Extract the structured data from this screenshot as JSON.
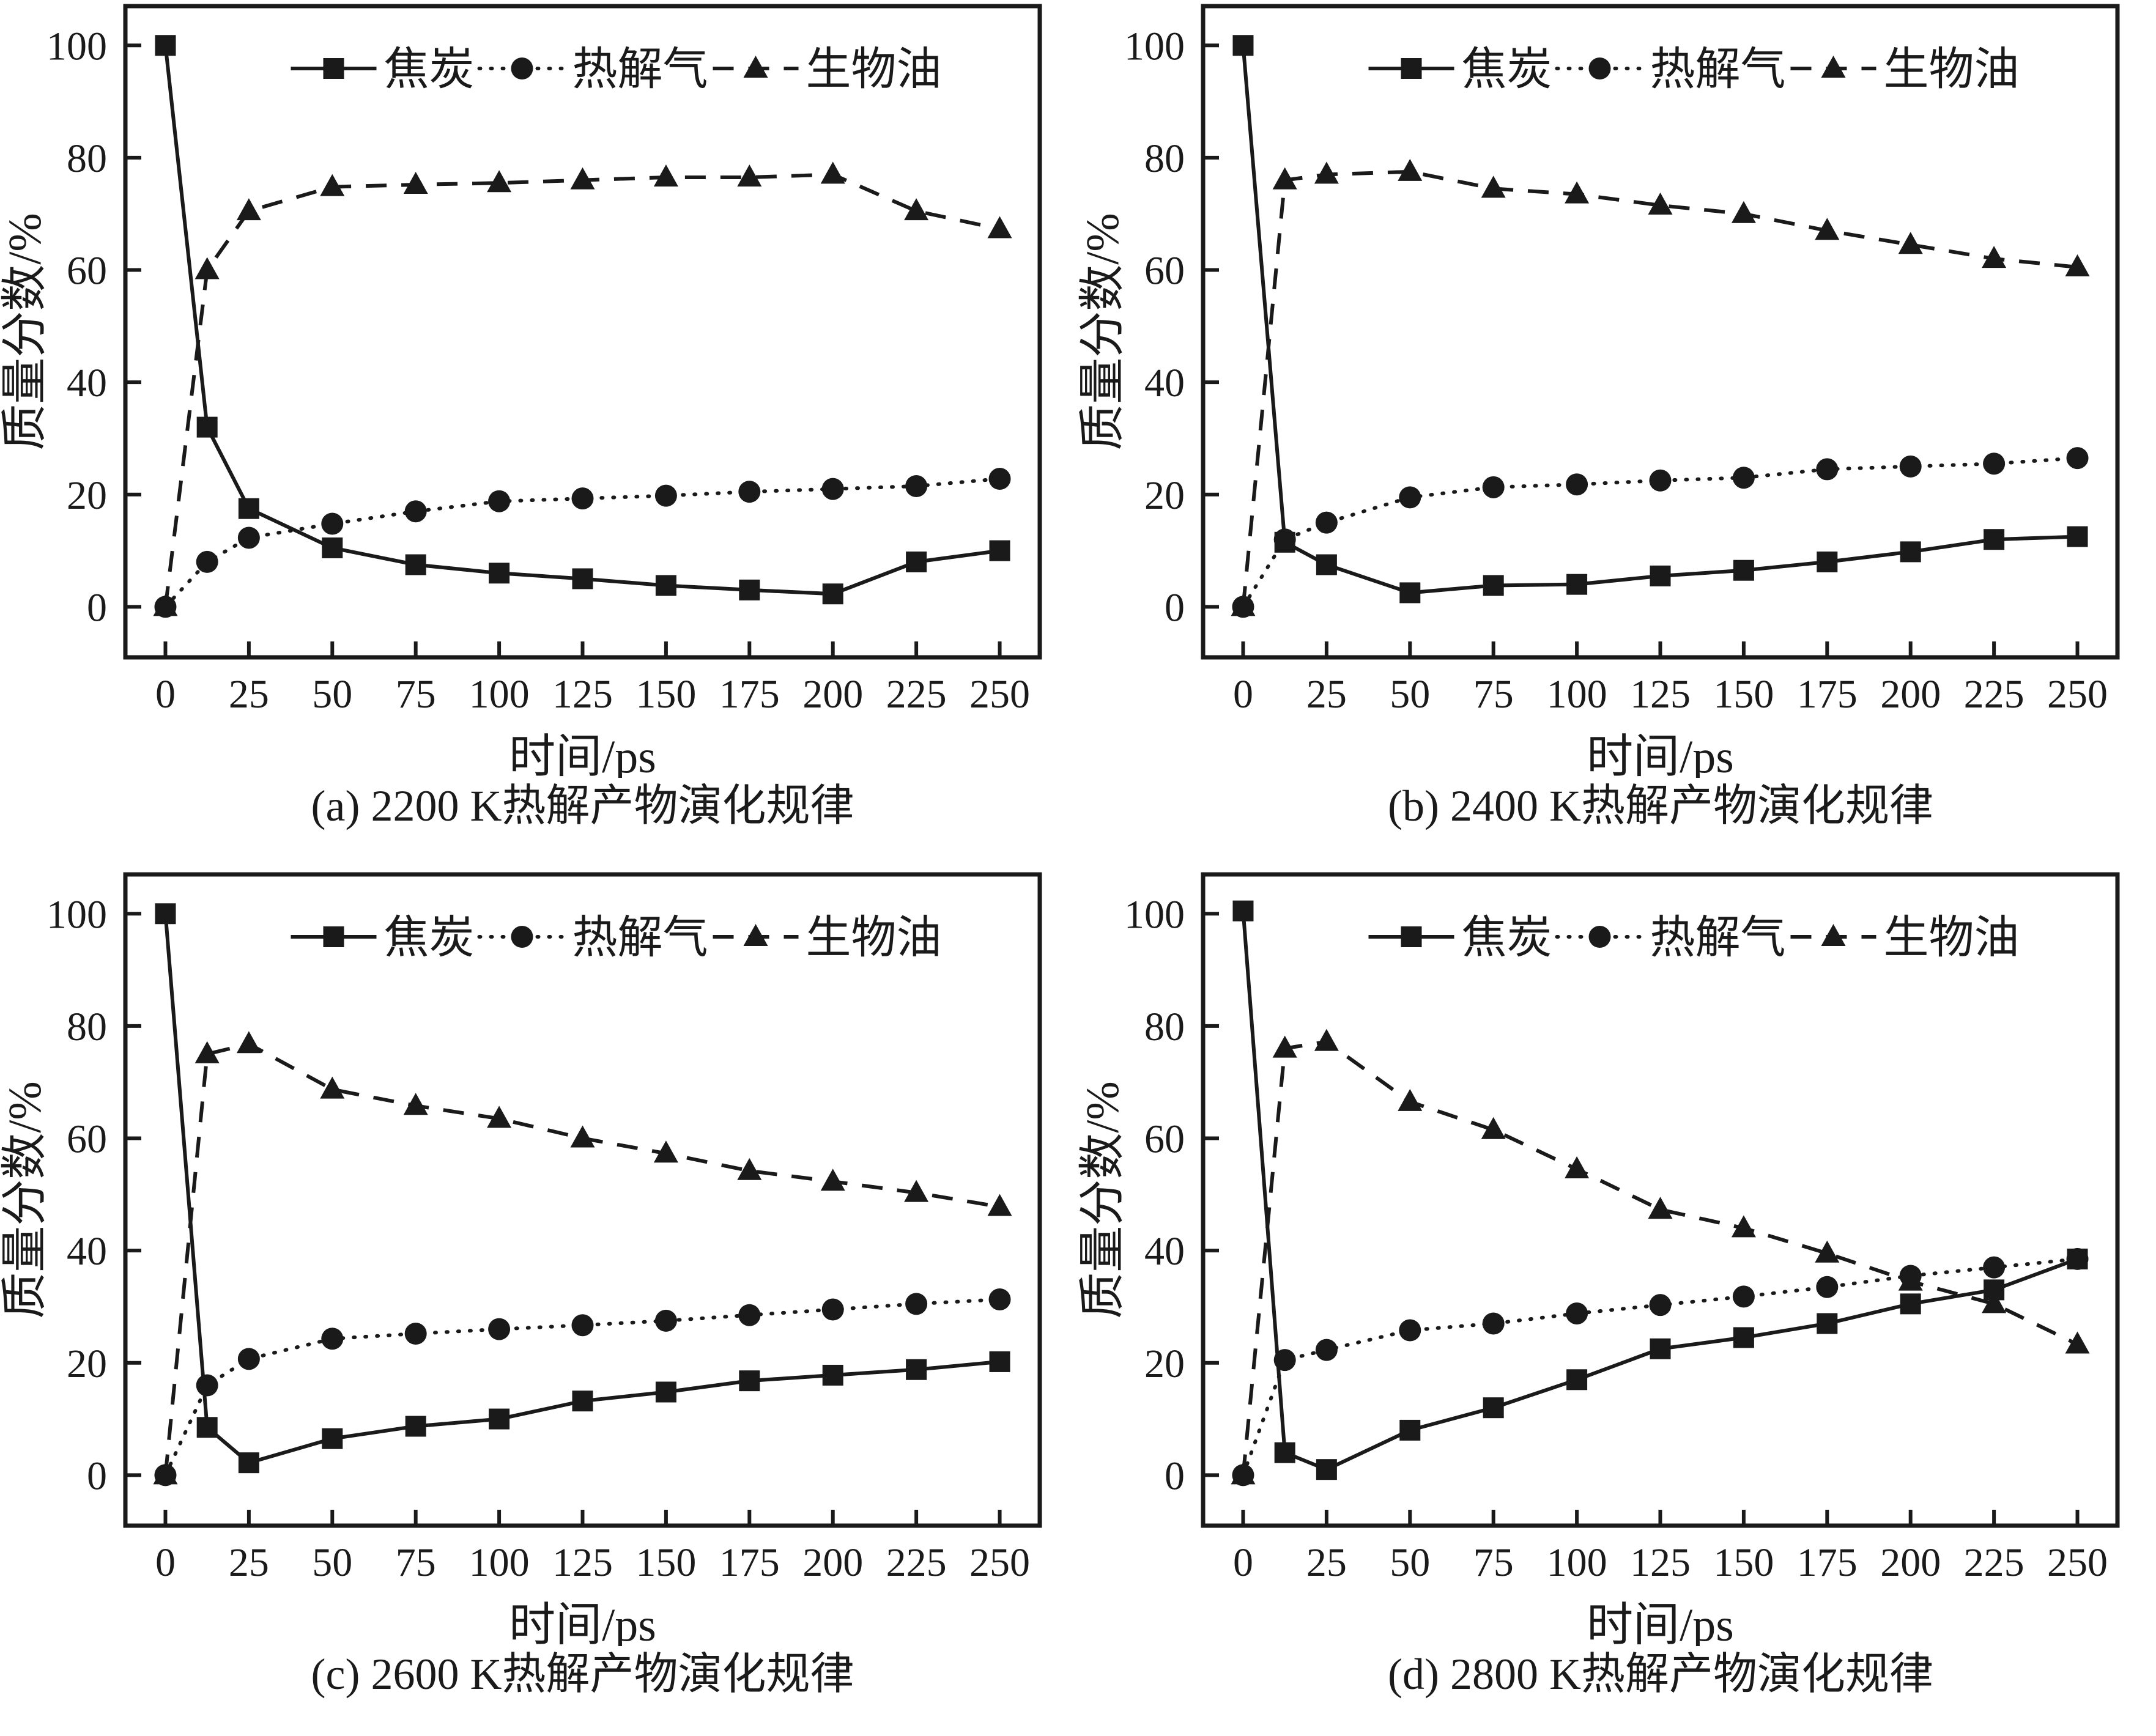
{
  "page": {
    "background": "#ffffff",
    "ink": "#1a1a1a",
    "figure_type": "2x2 line-chart figure of pyrolysis product evolution"
  },
  "legend": {
    "items": [
      {
        "label": "焦炭",
        "marker": "square",
        "line": "solid"
      },
      {
        "label": "热解气",
        "marker": "circle",
        "line": "dotted"
      },
      {
        "label": "生物油",
        "marker": "triangle",
        "line": "dashed"
      }
    ]
  },
  "chart_data": [
    {
      "id": "a",
      "type": "line",
      "caption": "(a) 2200 K热解产物演化规律",
      "xlabel": "时间/ps",
      "ylabel": "质量分数/%",
      "x": [
        0,
        12.5,
        25,
        50,
        75,
        100,
        125,
        150,
        175,
        200,
        225,
        250
      ],
      "series": [
        {
          "name": "焦炭",
          "marker": "square",
          "line": "solid",
          "values": [
            100,
            32,
            17.5,
            10.5,
            7.5,
            6,
            5,
            3.8,
            3,
            2.3,
            8,
            10
          ]
        },
        {
          "name": "热解气",
          "marker": "circle",
          "line": "dotted",
          "values": [
            0,
            8,
            12.3,
            14.8,
            17,
            18.8,
            19.3,
            19.8,
            20.5,
            21,
            21.5,
            22.8
          ]
        },
        {
          "name": "生物油",
          "marker": "triangle",
          "line": "dashed",
          "values": [
            0,
            60,
            70.5,
            74.8,
            75.2,
            75.5,
            76,
            76.5,
            76.5,
            77,
            70.5,
            67.3
          ]
        }
      ],
      "xticks": [
        0,
        25,
        50,
        75,
        100,
        125,
        150,
        175,
        200,
        225,
        250
      ],
      "yticks": [
        0,
        20,
        40,
        60,
        80,
        100
      ],
      "xlim": [
        -12,
        262
      ],
      "ylim": [
        -9,
        107
      ],
      "grid": false,
      "legend_position": "top-center-inside"
    },
    {
      "id": "b",
      "type": "line",
      "caption": "(b) 2400 K热解产物演化规律",
      "xlabel": "时间/ps",
      "ylabel": "质量分数/%",
      "x": [
        0,
        12.5,
        25,
        50,
        75,
        100,
        125,
        150,
        175,
        200,
        225,
        250
      ],
      "series": [
        {
          "name": "焦炭",
          "marker": "square",
          "line": "solid",
          "values": [
            100,
            11.5,
            7.5,
            2.5,
            3.8,
            4,
            5.5,
            6.5,
            8,
            9.8,
            12,
            12.5
          ]
        },
        {
          "name": "热解气",
          "marker": "circle",
          "line": "dotted",
          "values": [
            0,
            12,
            15,
            19.5,
            21.3,
            21.8,
            22.5,
            23,
            24.5,
            25,
            25.5,
            26.5
          ]
        },
        {
          "name": "生物油",
          "marker": "triangle",
          "line": "dashed",
          "values": [
            0,
            76,
            77,
            77.5,
            74.5,
            73.5,
            71.5,
            70,
            67,
            64.5,
            62,
            60.5
          ]
        }
      ],
      "xticks": [
        0,
        25,
        50,
        75,
        100,
        125,
        150,
        175,
        200,
        225,
        250
      ],
      "yticks": [
        0,
        20,
        40,
        60,
        80,
        100
      ],
      "xlim": [
        -12,
        262
      ],
      "ylim": [
        -9,
        107
      ],
      "grid": false,
      "legend_position": "top-center-inside"
    },
    {
      "id": "c",
      "type": "line",
      "caption": "(c) 2600 K热解产物演化规律",
      "xlabel": "时间/ps",
      "ylabel": "质量分数/%",
      "x": [
        0,
        12.5,
        25,
        50,
        75,
        100,
        125,
        150,
        175,
        200,
        225,
        250
      ],
      "series": [
        {
          "name": "焦炭",
          "marker": "square",
          "line": "solid",
          "values": [
            100,
            8.5,
            2.2,
            6.5,
            8.7,
            10,
            13.2,
            14.8,
            16.8,
            17.8,
            18.8,
            20.2
          ]
        },
        {
          "name": "热解气",
          "marker": "circle",
          "line": "dotted",
          "values": [
            0,
            16,
            20.7,
            24.3,
            25.2,
            26,
            26.7,
            27.5,
            28.5,
            29.5,
            30.5,
            31.3
          ]
        },
        {
          "name": "生物油",
          "marker": "triangle",
          "line": "dashed",
          "values": [
            0,
            75,
            76.8,
            68.7,
            65.8,
            63.5,
            60,
            57.3,
            54.2,
            52.3,
            50.3,
            47.8
          ]
        }
      ],
      "xticks": [
        0,
        25,
        50,
        75,
        100,
        125,
        150,
        175,
        200,
        225,
        250
      ],
      "yticks": [
        0,
        20,
        40,
        60,
        80,
        100
      ],
      "xlim": [
        -12,
        262
      ],
      "ylim": [
        -9,
        107
      ],
      "grid": false,
      "legend_position": "top-center-inside"
    },
    {
      "id": "d",
      "type": "line",
      "caption": "(d) 2800 K热解产物演化规律",
      "xlabel": "时间/ps",
      "ylabel": "质量分数/%",
      "x": [
        0,
        12.5,
        25,
        50,
        75,
        100,
        125,
        150,
        175,
        200,
        225,
        250
      ],
      "series": [
        {
          "name": "焦炭",
          "marker": "square",
          "line": "solid",
          "values": [
            100.5,
            4,
            1,
            8,
            12,
            17,
            22.5,
            24.5,
            27,
            30.5,
            33,
            38.5
          ]
        },
        {
          "name": "热解气",
          "marker": "circle",
          "line": "dotted",
          "values": [
            0,
            20.5,
            22.3,
            25.8,
            27,
            28.8,
            30.3,
            31.8,
            33.5,
            35.5,
            37,
            38.5
          ]
        },
        {
          "name": "生物油",
          "marker": "triangle",
          "line": "dashed",
          "values": [
            0,
            76,
            77.2,
            66.5,
            61.5,
            54.5,
            47.3,
            44,
            39.5,
            34.5,
            30.5,
            23.3
          ]
        }
      ],
      "xticks": [
        0,
        25,
        50,
        75,
        100,
        125,
        150,
        175,
        200,
        225,
        250
      ],
      "yticks": [
        0,
        20,
        40,
        60,
        80,
        100
      ],
      "xlim": [
        -12,
        262
      ],
      "ylim": [
        -9,
        107
      ],
      "grid": false,
      "legend_position": "top-center-inside"
    }
  ]
}
